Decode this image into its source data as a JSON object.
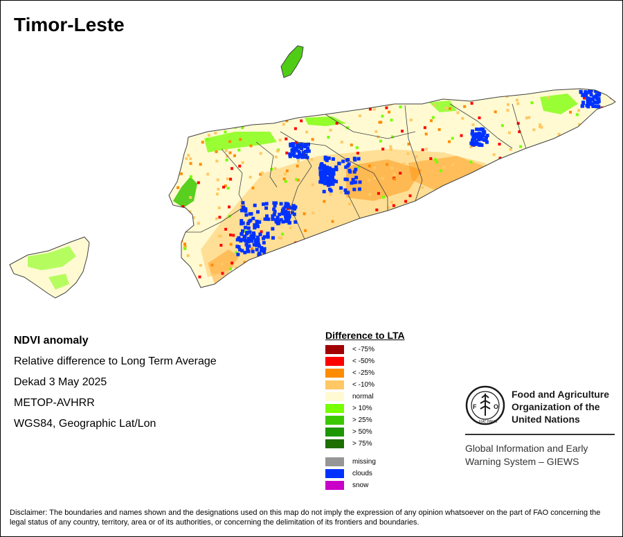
{
  "title": "Timor-Leste",
  "info": {
    "line1": "NDVI anomaly",
    "line2": "Relative difference to Long Term Average",
    "line3": "Dekad 3 May 2025",
    "line4": "METOP-AVHRR",
    "line5": "WGS84, Geographic Lat/Lon"
  },
  "legend": {
    "title": "Difference to LTA",
    "classes": [
      {
        "label": "< -75%",
        "color": "#a00000"
      },
      {
        "label": "< -50%",
        "color": "#ff0000"
      },
      {
        "label": "< -25%",
        "color": "#ff8c00"
      },
      {
        "label": "< -10%",
        "color": "#ffc864"
      },
      {
        "label": "normal",
        "color": "#fffad2"
      },
      {
        "label": "> 10%",
        "color": "#78ff00"
      },
      {
        "label": "> 25%",
        "color": "#3cc800"
      },
      {
        "label": "> 50%",
        "color": "#1e9600"
      },
      {
        "label": "> 75%",
        "color": "#1e6e00"
      }
    ],
    "extra": [
      {
        "label": "missing",
        "color": "#969696"
      },
      {
        "label": "clouds",
        "color": "#0032ff"
      },
      {
        "label": "snow",
        "color": "#c800c8"
      }
    ]
  },
  "fao": {
    "name_line1": "Food and Agriculture",
    "name_line2": "Organization of the",
    "name_line3": "United Nations",
    "logo_text": "FIAT PANIS",
    "giews_line1": "Global Information and Early",
    "giews_line2": "Warning System – GIEWS"
  },
  "disclaimer": "Disclaimer: The boundaries and names shown and the designations used on this map do not imply the expression of any opinion whatsoever on the part of FAO concerning the legal status of any country, territory, area or of its authorities, or concerning the delimitation of its frontiers and boundaries.",
  "colors": {
    "normal": "#fffad2",
    "border": "#404040"
  }
}
